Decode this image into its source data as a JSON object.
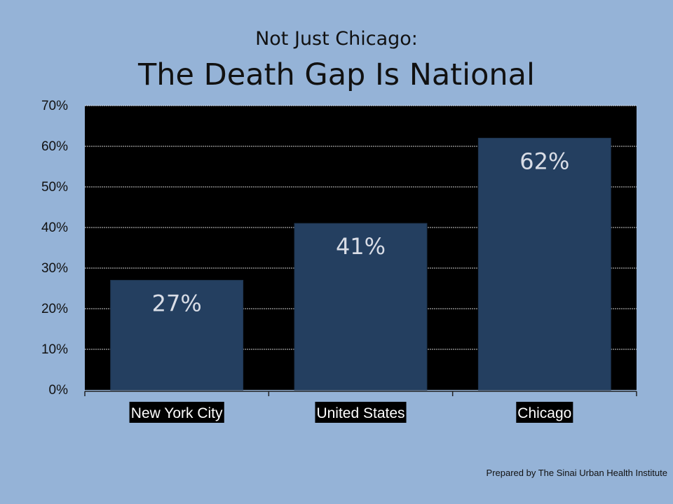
{
  "slide": {
    "subtitle": "Not Just Chicago:",
    "title": "The Death Gap Is National",
    "footer": "Prepared by The Sinai Urban Health Institute"
  },
  "colors": {
    "background": "#95b3d7",
    "plot_area": "#000000",
    "bar": "#243f60",
    "bar_label": "#d9dde6"
  },
  "chart_data": {
    "type": "bar",
    "categories": [
      "New York City",
      "United States",
      "Chicago"
    ],
    "values": [
      27,
      41,
      62
    ],
    "data_labels": [
      "27%",
      "41%",
      "62%"
    ],
    "ylim": [
      0,
      70
    ],
    "yticks": [
      0,
      10,
      20,
      30,
      40,
      50,
      60,
      70
    ],
    "ytick_labels": [
      "0%",
      "10%",
      "20%",
      "30%",
      "40%",
      "50%",
      "60%",
      "70%"
    ],
    "grid": true,
    "xlabel": "",
    "ylabel": ""
  }
}
